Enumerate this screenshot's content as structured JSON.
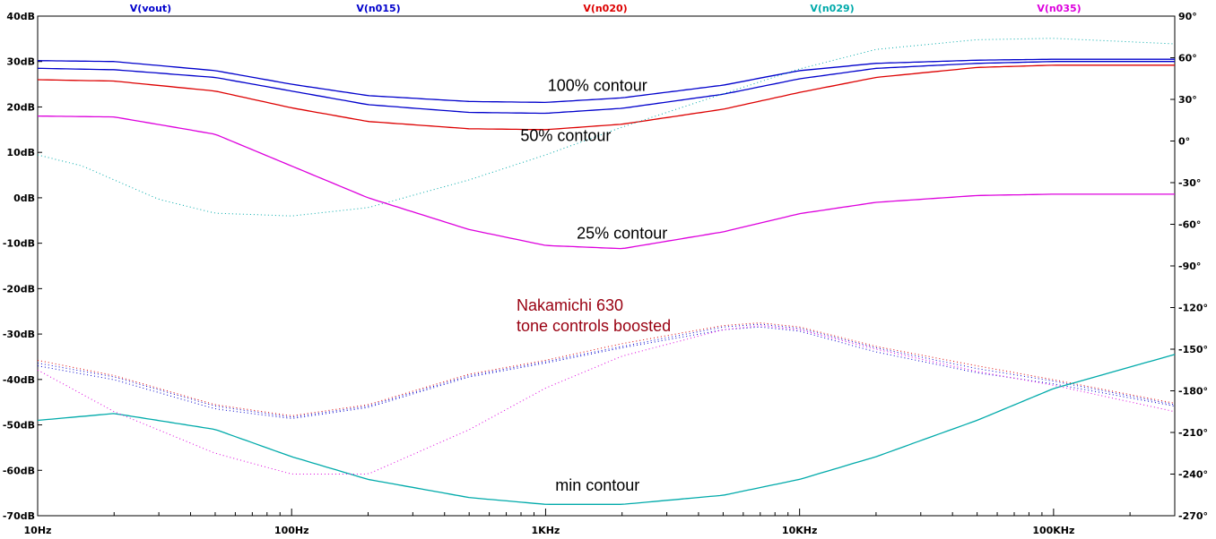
{
  "chart_data": {
    "type": "line",
    "x_scale": "log",
    "x_range_hz": [
      10,
      300000
    ],
    "y_range_db": [
      -70,
      40
    ],
    "y2_range_deg": [
      -270,
      90
    ],
    "grid": false,
    "x_ticks": [
      {
        "value": 10,
        "label": "10Hz"
      },
      {
        "value": 100,
        "label": "100Hz"
      },
      {
        "value": 1000,
        "label": "1KHz"
      },
      {
        "value": 10000,
        "label": "10KHz"
      },
      {
        "value": 100000,
        "label": "100KHz"
      }
    ],
    "y_ticks": [
      {
        "value": 40,
        "label": "40dB"
      },
      {
        "value": 30,
        "label": "30dB"
      },
      {
        "value": 20,
        "label": "20dB"
      },
      {
        "value": 10,
        "label": "10dB"
      },
      {
        "value": 0,
        "label": "0dB"
      },
      {
        "value": -10,
        "label": "-10dB"
      },
      {
        "value": -20,
        "label": "-20dB"
      },
      {
        "value": -30,
        "label": "-30dB"
      },
      {
        "value": -40,
        "label": "-40dB"
      },
      {
        "value": -50,
        "label": "-50dB"
      },
      {
        "value": -60,
        "label": "-60dB"
      },
      {
        "value": -70,
        "label": "-70dB"
      }
    ],
    "y2_ticks": [
      {
        "value": 90,
        "label": "90°"
      },
      {
        "value": 60,
        "label": "60°"
      },
      {
        "value": 30,
        "label": "30°"
      },
      {
        "value": 0,
        "label": "0°"
      },
      {
        "value": -30,
        "label": "-30°"
      },
      {
        "value": -60,
        "label": "-60°"
      },
      {
        "value": -90,
        "label": "-90°"
      },
      {
        "value": -120,
        "label": "-120°"
      },
      {
        "value": -150,
        "label": "-150°"
      },
      {
        "value": -180,
        "label": "-180°"
      },
      {
        "value": -210,
        "label": "-210°"
      },
      {
        "value": -240,
        "label": "-240°"
      },
      {
        "value": -270,
        "label": "-270°"
      }
    ],
    "series": [
      {
        "name": "V(vout)",
        "color": "#0000cc",
        "magnitude_db": [
          [
            10,
            30.2
          ],
          [
            20,
            30
          ],
          [
            50,
            28
          ],
          [
            100,
            25
          ],
          [
            200,
            22.5
          ],
          [
            500,
            21.2
          ],
          [
            1000,
            21
          ],
          [
            2000,
            22
          ],
          [
            5000,
            24.8
          ],
          [
            10000,
            28
          ],
          [
            20000,
            29.6
          ],
          [
            50000,
            30.3
          ],
          [
            100000,
            30.5
          ],
          [
            300000,
            30.5
          ]
        ],
        "phase_deg": [
          [
            10,
            -162
          ],
          [
            20,
            -172
          ],
          [
            50,
            -193
          ],
          [
            100,
            -200
          ],
          [
            200,
            -192
          ],
          [
            500,
            -170
          ],
          [
            1000,
            -160
          ],
          [
            2000,
            -149
          ],
          [
            5000,
            -136
          ],
          [
            7000,
            -134
          ],
          [
            10000,
            -137
          ],
          [
            20000,
            -152
          ],
          [
            50000,
            -167
          ],
          [
            100000,
            -175
          ],
          [
            300000,
            -191
          ]
        ]
      },
      {
        "name": "V(n015)",
        "color": "#0000cc",
        "magnitude_db": [
          [
            10,
            28.5
          ],
          [
            20,
            28.2
          ],
          [
            50,
            26.5
          ],
          [
            100,
            23.5
          ],
          [
            200,
            20.5
          ],
          [
            500,
            18.8
          ],
          [
            1000,
            18.6
          ],
          [
            2000,
            19.7
          ],
          [
            5000,
            22.8
          ],
          [
            10000,
            26.2
          ],
          [
            20000,
            28.5
          ],
          [
            50000,
            29.6
          ],
          [
            100000,
            30
          ],
          [
            300000,
            30
          ]
        ],
        "phase_deg": [
          [
            10,
            -160
          ],
          [
            20,
            -170
          ],
          [
            50,
            -191
          ],
          [
            100,
            -199
          ],
          [
            200,
            -191
          ],
          [
            500,
            -169
          ],
          [
            1000,
            -159
          ],
          [
            2000,
            -148
          ],
          [
            5000,
            -134
          ],
          [
            7000,
            -132
          ],
          [
            10000,
            -135
          ],
          [
            20000,
            -149
          ],
          [
            50000,
            -164
          ],
          [
            100000,
            -173
          ],
          [
            300000,
            -190
          ]
        ]
      },
      {
        "name": "V(n020)",
        "color": "#dd0000",
        "magnitude_db": [
          [
            10,
            26
          ],
          [
            20,
            25.7
          ],
          [
            50,
            23.5
          ],
          [
            100,
            19.8
          ],
          [
            200,
            16.8
          ],
          [
            500,
            15.2
          ],
          [
            1000,
            15
          ],
          [
            2000,
            16.2
          ],
          [
            5000,
            19.5
          ],
          [
            10000,
            23.2
          ],
          [
            20000,
            26.5
          ],
          [
            50000,
            28.7
          ],
          [
            100000,
            29.2
          ],
          [
            300000,
            29.2
          ]
        ],
        "phase_deg": [
          [
            10,
            -158
          ],
          [
            20,
            -169
          ],
          [
            50,
            -190
          ],
          [
            100,
            -198
          ],
          [
            200,
            -190
          ],
          [
            500,
            -168
          ],
          [
            1000,
            -158
          ],
          [
            2000,
            -146
          ],
          [
            5000,
            -133
          ],
          [
            7000,
            -131
          ],
          [
            10000,
            -134
          ],
          [
            20000,
            -148
          ],
          [
            50000,
            -162
          ],
          [
            100000,
            -172
          ],
          [
            300000,
            -189
          ]
        ]
      },
      {
        "name": "V(n029)",
        "color": "#00aaaa",
        "magnitude_db": [
          [
            10,
            -49
          ],
          [
            20,
            -47.5
          ],
          [
            50,
            -51
          ],
          [
            100,
            -57
          ],
          [
            200,
            -62
          ],
          [
            500,
            -66
          ],
          [
            1000,
            -67.5
          ],
          [
            2000,
            -67.5
          ],
          [
            5000,
            -65.5
          ],
          [
            10000,
            -62
          ],
          [
            20000,
            -57
          ],
          [
            50000,
            -49
          ],
          [
            100000,
            -42
          ],
          [
            300000,
            -34.5
          ]
        ],
        "phase_deg": [
          [
            10,
            -10
          ],
          [
            15,
            -18
          ],
          [
            20,
            -28
          ],
          [
            30,
            -42
          ],
          [
            50,
            -52
          ],
          [
            100,
            -54
          ],
          [
            200,
            -48
          ],
          [
            500,
            -28
          ],
          [
            1000,
            -10
          ],
          [
            2000,
            10
          ],
          [
            5000,
            34
          ],
          [
            10000,
            52
          ],
          [
            20000,
            66
          ],
          [
            50000,
            73
          ],
          [
            100000,
            74
          ],
          [
            300000,
            70
          ]
        ]
      },
      {
        "name": "V(n035)",
        "color": "#dd00dd",
        "magnitude_db": [
          [
            10,
            18
          ],
          [
            20,
            17.8
          ],
          [
            50,
            14
          ],
          [
            100,
            7
          ],
          [
            200,
            0
          ],
          [
            500,
            -7
          ],
          [
            1000,
            -10.5
          ],
          [
            2000,
            -11.2
          ],
          [
            5000,
            -7.5
          ],
          [
            10000,
            -3.5
          ],
          [
            20000,
            -1
          ],
          [
            50000,
            0.5
          ],
          [
            100000,
            0.8
          ],
          [
            300000,
            0.8
          ]
        ],
        "phase_deg": [
          [
            10,
            -165
          ],
          [
            20,
            -195
          ],
          [
            50,
            -225
          ],
          [
            100,
            -240
          ],
          [
            200,
            -240
          ],
          [
            500,
            -208
          ],
          [
            1000,
            -178
          ],
          [
            2000,
            -155
          ],
          [
            5000,
            -136
          ],
          [
            7000,
            -133
          ],
          [
            10000,
            -136
          ],
          [
            20000,
            -150
          ],
          [
            50000,
            -166
          ],
          [
            100000,
            -176
          ],
          [
            300000,
            -195
          ]
        ]
      }
    ],
    "annotations": [
      {
        "text": "100% contour",
        "x_hz": 1600,
        "y_db": 23.5
      },
      {
        "text": "50% contour",
        "x_hz": 1200,
        "y_db": 12.5
      },
      {
        "text": "25% contour",
        "x_hz": 2000,
        "y_db": -9
      },
      {
        "text": "min contour",
        "x_hz": 1600,
        "y_db": -64.5
      }
    ],
    "note": {
      "lines": [
        "Nakamichi 630",
        "tone controls boosted"
      ],
      "color": "#990011"
    }
  }
}
